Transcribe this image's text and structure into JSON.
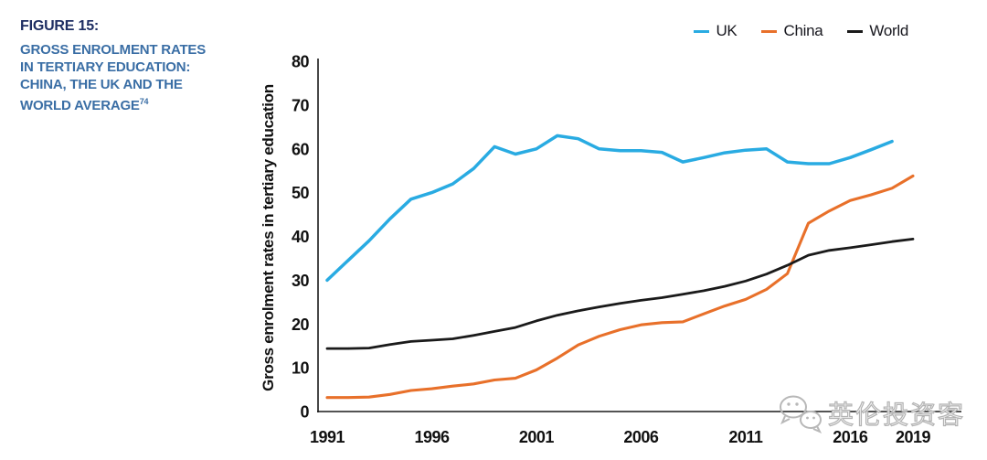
{
  "figure": {
    "label": "FIGURE 15:",
    "title_lines": [
      "GROSS ENROLMENT RATES",
      "IN TERTIARY EDUCATION:",
      "CHINA, THE UK AND THE",
      "WORLD AVERAGE"
    ],
    "footnote_ref": "74"
  },
  "colors": {
    "figure_label": "#1E2E63",
    "figure_title": "#3A6EA5",
    "axis": "#1a1a1a",
    "uk": "#29ABE2",
    "china": "#E8702A",
    "world": "#1A1A1A",
    "watermark_gray": "#b3b3b3"
  },
  "watermark": {
    "icon": "wechat-logo-icon",
    "text": "英伦投资客"
  },
  "chart_data": {
    "type": "line",
    "title": "",
    "xlabel": "",
    "ylabel": "Gross enrolment rates in tertiary education",
    "xlim": [
      1991,
      2019
    ],
    "ylim": [
      0,
      80
    ],
    "grid": false,
    "legend_position": "top-right",
    "x_tick_labels": [
      "1991",
      "1996",
      "2001",
      "2006",
      "2011",
      "2016",
      "2019"
    ],
    "x_tick_years": [
      1991,
      1996,
      2001,
      2006,
      2011,
      2016,
      2019
    ],
    "y_tick_labels": [
      "0",
      "10",
      "20",
      "30",
      "40",
      "50",
      "60",
      "70",
      "80"
    ],
    "y_tick_values": [
      0,
      10,
      20,
      30,
      40,
      50,
      60,
      70,
      80
    ],
    "years": [
      1991,
      1992,
      1993,
      1994,
      1995,
      1996,
      1997,
      1998,
      1999,
      2000,
      2001,
      2002,
      2003,
      2004,
      2005,
      2006,
      2007,
      2008,
      2009,
      2010,
      2011,
      2012,
      2013,
      2014,
      2015,
      2016,
      2017,
      2018,
      2019
    ],
    "series": [
      {
        "name": "UK",
        "color": "#29ABE2",
        "values": [
          30,
          34.5,
          39,
          44,
          48.5,
          50,
          52,
          55.5,
          60.5,
          58.8,
          60,
          63,
          62.3,
          60,
          59.6,
          59.6,
          59.2,
          57,
          58,
          59.1,
          59.7,
          60,
          57,
          56.6,
          56.6,
          58,
          59.8,
          61.7,
          null
        ]
      },
      {
        "name": "China",
        "color": "#E8702A",
        "values": [
          3.2,
          3.2,
          3.3,
          3.9,
          4.8,
          5.2,
          5.8,
          6.3,
          7.2,
          7.6,
          9.5,
          12.2,
          15.2,
          17.2,
          18.7,
          19.8,
          20.3,
          20.5,
          22.3,
          24.1,
          25.6,
          27.9,
          31.5,
          43,
          45.8,
          48.2,
          49.5,
          51,
          53.8
        ]
      },
      {
        "name": "World",
        "color": "#1A1A1A",
        "values": [
          14.4,
          14.4,
          14.5,
          15.3,
          16,
          16.3,
          16.6,
          17.4,
          18.3,
          19.2,
          20.7,
          22,
          23,
          23.9,
          24.7,
          25.4,
          26,
          26.8,
          27.6,
          28.6,
          29.8,
          31.4,
          33.4,
          35.7,
          36.8,
          37.4,
          38.1,
          38.8,
          39.4
        ]
      }
    ]
  }
}
